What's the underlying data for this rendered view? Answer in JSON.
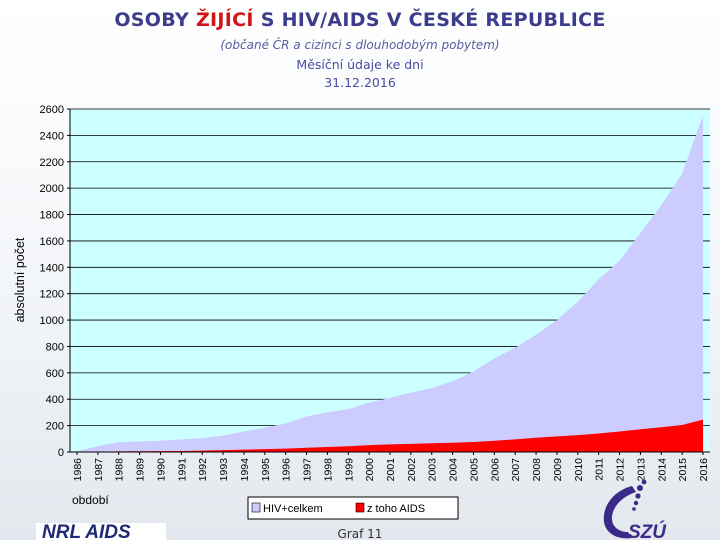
{
  "title": {
    "part1": "OSOBY ",
    "part2_red": "ŽIJÍCÍ",
    "part3": " S HIV/AIDS V ČESKÉ REPUBLICE",
    "subtitle": "(občané ČR a cizinci s dlouhodobým pobytem)",
    "line3": "Měsíční údaje ke dni",
    "date": "31.12.2016"
  },
  "colors": {
    "plot_bg": "#ccffff",
    "hiv_fill": "#ccccff",
    "aids_fill": "#ff0000",
    "grid": "#000000"
  },
  "chart_data": {
    "type": "area",
    "title": "OSOBY ŽIJÍCÍ S HIV/AIDS V ČESKÉ REPUBLICE",
    "ylabel": "absolutní počet",
    "xlabel": "období",
    "ylim": [
      0,
      2600
    ],
    "yticks": [
      "0",
      "200",
      "400",
      "600",
      "800",
      "1000",
      "1200",
      "1400",
      "1600",
      "1800",
      "2000",
      "2200",
      "2400",
      "2600"
    ],
    "categories": [
      "1986",
      "1987",
      "1988",
      "1989",
      "1990",
      "1991",
      "1992",
      "1993",
      "1994",
      "1995",
      "1996",
      "1997",
      "1998",
      "1999",
      "2000",
      "2001",
      "2002",
      "2003",
      "2004",
      "2005",
      "2006",
      "2007",
      "2008",
      "2009",
      "2010",
      "2011",
      "2012",
      "2013",
      "2014",
      "2015",
      "2016"
    ],
    "grid": true,
    "legend_position": "bottom-center",
    "series": [
      {
        "name": "HIV+celkem",
        "color": "#ccccff",
        "values": [
          5,
          45,
          75,
          80,
          85,
          95,
          105,
          125,
          155,
          185,
          215,
          270,
          300,
          325,
          375,
          410,
          450,
          485,
          535,
          610,
          710,
          790,
          890,
          1000,
          1140,
          1310,
          1450,
          1660,
          1870,
          2110,
          2550
        ]
      },
      {
        "name": "z toho AIDS",
        "color": "#ff0000",
        "values": [
          0,
          2,
          5,
          6,
          7,
          8,
          10,
          14,
          18,
          22,
          26,
          32,
          38,
          44,
          52,
          58,
          62,
          66,
          70,
          76,
          85,
          96,
          108,
          118,
          128,
          140,
          155,
          172,
          188,
          205,
          245
        ]
      }
    ]
  },
  "footer": {
    "left_text": "NRL AIDS",
    "center_text": "Graf 11",
    "logo_text": "SZÚ"
  }
}
